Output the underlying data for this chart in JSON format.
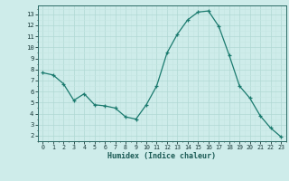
{
  "x": [
    0,
    1,
    2,
    3,
    4,
    5,
    6,
    7,
    8,
    9,
    10,
    11,
    12,
    13,
    14,
    15,
    16,
    17,
    18,
    19,
    20,
    21,
    22,
    23
  ],
  "y": [
    7.7,
    7.5,
    6.7,
    5.2,
    5.8,
    4.8,
    4.7,
    4.5,
    3.7,
    3.5,
    4.8,
    6.5,
    9.5,
    11.2,
    12.5,
    13.2,
    13.3,
    11.9,
    9.3,
    6.5,
    5.4,
    3.8,
    2.7,
    1.9
  ],
  "xlabel": "Humidex (Indice chaleur)",
  "ylim": [
    1.5,
    13.8
  ],
  "xlim": [
    -0.5,
    23.5
  ],
  "yticks": [
    2,
    3,
    4,
    5,
    6,
    7,
    8,
    9,
    10,
    11,
    12,
    13
  ],
  "xticks": [
    0,
    1,
    2,
    3,
    4,
    5,
    6,
    7,
    8,
    9,
    10,
    11,
    12,
    13,
    14,
    15,
    16,
    17,
    18,
    19,
    20,
    21,
    22,
    23
  ],
  "line_color": "#1a7a6e",
  "marker_color": "#1a7a6e",
  "bg_color": "#ceecea",
  "grid_major_color": "#b0d8d4",
  "grid_minor_color": "#c4e6e2"
}
